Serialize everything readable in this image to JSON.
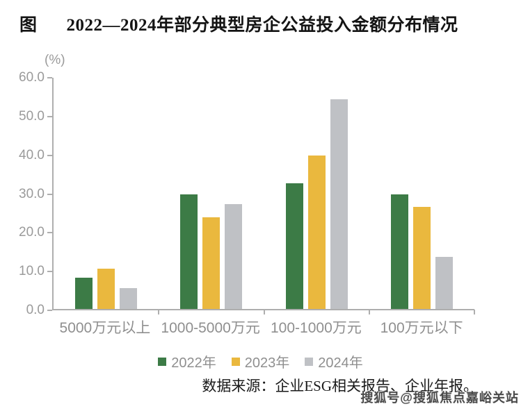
{
  "title": {
    "prefix": "图",
    "text": "2022—2024年部分典型房企公益投入金额分布情况"
  },
  "chart_data": {
    "type": "bar",
    "title": "2022—2024年部分典型房企公益投入金额分布情况",
    "unit_label": "(%)",
    "categories": [
      "5000万元以上",
      "1000-5000万元",
      "100-1000万元",
      "100万元以下"
    ],
    "series": [
      {
        "name": "2022年",
        "color": "#3c7b46",
        "values": [
          8.0,
          29.5,
          32.5,
          29.5
        ]
      },
      {
        "name": "2023年",
        "color": "#eab83e",
        "values": [
          10.3,
          23.7,
          39.5,
          26.3
        ]
      },
      {
        "name": "2024年",
        "color": "#bfc1c5",
        "values": [
          5.3,
          27.0,
          54.0,
          13.4
        ]
      }
    ],
    "ylim": [
      0,
      60
    ],
    "yticks": [
      0,
      10,
      20,
      30,
      40,
      50,
      60
    ],
    "ytick_decimals": 1,
    "grid": false,
    "legend_position": "bottom"
  },
  "source_note": "数据来源：企业ESG相关报告、企业年报。",
  "watermark": "搜狐号@搜狐焦点嘉峪关站"
}
